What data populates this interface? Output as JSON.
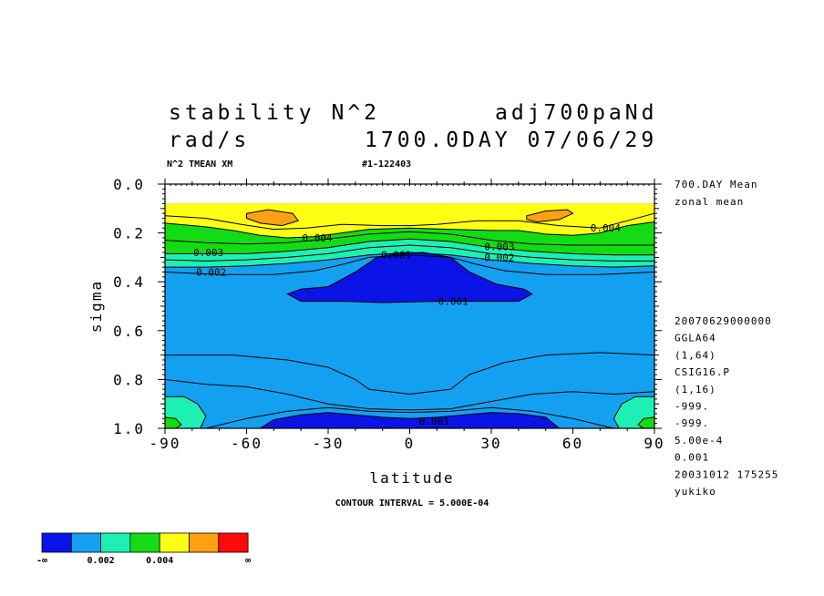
{
  "header": {
    "title_left": "stability N^2",
    "title_right": "adj700paNd",
    "units": "rad/s",
    "time_label": "1700.0DAY 07/06/29",
    "subtitle_left": "N^2 TMEAN XM",
    "subtitle_right": "#1-122403"
  },
  "side_info": {
    "top": [
      "700.DAY Mean",
      "zonal mean"
    ],
    "bottom": [
      "20070629000000",
      "GGLA64",
      "(1,64)",
      "CSIG16.P",
      "(1,16)",
      "-999.",
      "-999.",
      "5.00e-4",
      "0.001",
      "20031012 175255",
      "yukiko"
    ]
  },
  "contour_interval_text": "CONTOUR INTERVAL = 5.000E-04",
  "colorbar": {
    "colors": [
      "#0a14e6",
      "#14a0f0",
      "#1ef0b4",
      "#14dc14",
      "#ffff14",
      "#ffa014",
      "#ff0a0a"
    ],
    "labels": [
      "-∞",
      "0.002",
      "0.004",
      "∞"
    ]
  },
  "chart_data": {
    "type": "contour",
    "variable": "stability N^2",
    "units": "rad/s",
    "xlabel": "latitude",
    "ylabel": "sigma",
    "xlim": [
      -90,
      90
    ],
    "ylim": [
      1.0,
      0.0
    ],
    "x_ticks": [
      -90,
      -60,
      -30,
      0,
      30,
      60,
      90
    ],
    "y_ticks": [
      0.0,
      0.2,
      0.4,
      0.6,
      0.8,
      1.0
    ],
    "x_tick_labels": [
      "-90",
      "-60",
      "-30",
      "0",
      "30",
      "60",
      "90"
    ],
    "y_tick_labels": [
      "0.0",
      "0.2",
      "0.4",
      "0.6",
      "0.8",
      "1.0"
    ],
    "contour_interval": 0.0005,
    "contour_labels": [
      {
        "text": "0.004",
        "lat": -34,
        "sigma": 0.22
      },
      {
        "text": "0.004",
        "lat": 72,
        "sigma": 0.18
      },
      {
        "text": "0.003",
        "lat": -74,
        "sigma": 0.28
      },
      {
        "text": "0.003",
        "lat": 33,
        "sigma": 0.255
      },
      {
        "text": "0.002",
        "lat": -73,
        "sigma": 0.36
      },
      {
        "text": "0.002",
        "lat": 33,
        "sigma": 0.3
      },
      {
        "text": "0.001",
        "lat": -5,
        "sigma": 0.29
      },
      {
        "text": "0.001",
        "lat": 16,
        "sigma": 0.48
      },
      {
        "text": "0.001",
        "lat": 9,
        "sigma": 0.97
      }
    ],
    "regions": [
      {
        "level": "0.001-0.0015",
        "color": "#14a0f0",
        "lat_range": [
          -90,
          90
        ],
        "sigma_range": [
          0.08,
          1.0
        ]
      },
      {
        "level": "<0.001",
        "color": "#0a14e6",
        "lat_range": [
          -45,
          45
        ],
        "sigma_range": [
          0.28,
          0.48
        ]
      },
      {
        "level": "<0.001",
        "color": "#0a14e6",
        "lat_range": [
          -55,
          55
        ],
        "sigma_range": [
          0.92,
          0.99
        ]
      },
      {
        "level": "0.0015-0.0025",
        "color": "#1ef0b4",
        "lat_range": [
          -90,
          90
        ],
        "sigma_range": [
          0.22,
          0.36
        ]
      },
      {
        "level": "0.0025-0.0035",
        "color": "#14dc14",
        "lat_range": [
          -90,
          90
        ],
        "sigma_range": [
          0.08,
          0.3
        ]
      },
      {
        "level": "0.0035-0.0045",
        "color": "#ffff14",
        "lat_range": [
          -90,
          90
        ],
        "sigma_range": [
          0.08,
          0.22
        ]
      },
      {
        "level": "0.0045-0.005",
        "color": "#ffa014",
        "lat_range": [
          -58,
          -42
        ],
        "sigma_range": [
          0.1,
          0.17
        ]
      },
      {
        "level": "0.0045-0.005",
        "color": "#ffa014",
        "lat_range": [
          44,
          60
        ],
        "sigma_range": [
          0.1,
          0.16
        ]
      }
    ]
  }
}
